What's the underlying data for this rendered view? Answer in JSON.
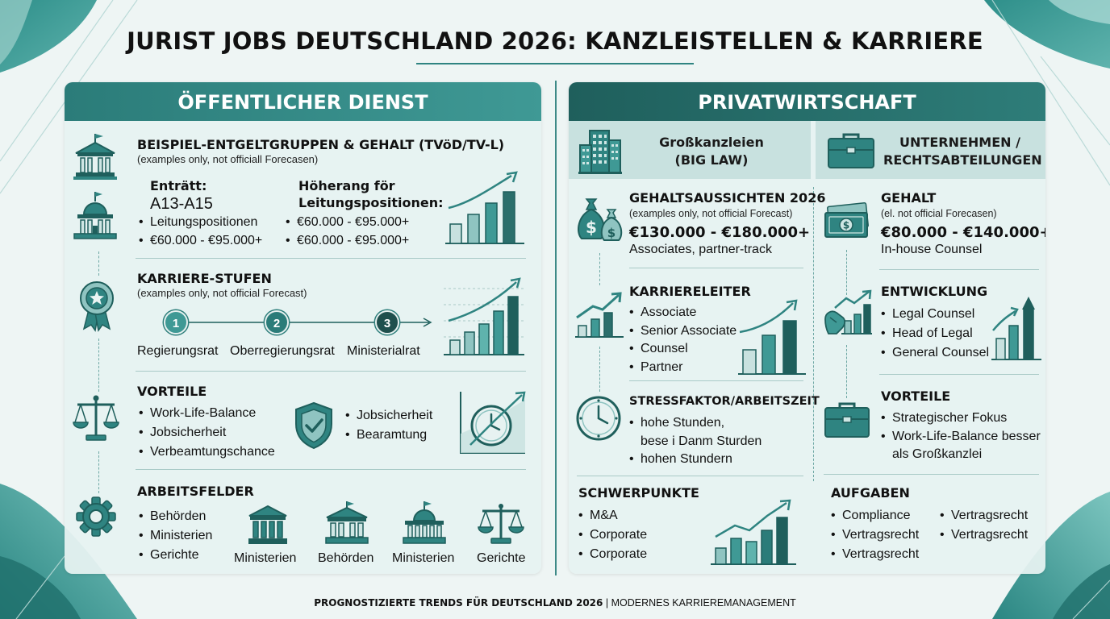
{
  "title": "JURIST JOBS DEUTSCHLAND 2026: KANZLEISTELLEN & KARRIERE",
  "footer": {
    "bold": "PROGNOSTIZIERTE TRENDS FÜR DEUTSCHLAND 2026",
    "separator": " | ",
    "rest": "MODERNES KARRIEREMANAGEMENT"
  },
  "colors": {
    "teal_dark": "#2b7c79",
    "teal_light": "#8fc4c1",
    "panel_bg": "#e7f2f1",
    "subheader_bg": "#c8e1df"
  },
  "left": {
    "header": "ÖFFENTLICHER DIENST",
    "pay": {
      "icon": "government-building-icon",
      "icon2": "domed-building-icon",
      "heading": "BEISPIEL-ENTGELTGRUPPEN & GEHALT (TVöD/TV-L)",
      "note": "(examples only, not officiall Forecasen)",
      "col1": {
        "label": "Enträtt:",
        "grade": "A13-A15",
        "bullets": [
          "Leitungspositionen",
          "€60.000 - €95.000+"
        ]
      },
      "col2": {
        "label_line1": "Höherang för",
        "label_line2": "Leitungspositionen:",
        "bullets": [
          "€60.000 - €95.000+",
          "€60.000 - €95.000+"
        ]
      }
    },
    "career": {
      "icon": "award-rosette-icon",
      "heading": "KARRIERE-STUFEN",
      "note": "(examples only, not official Forecast)",
      "steps": [
        {
          "number": "1",
          "label": "Regierungsrat"
        },
        {
          "number": "2",
          "label": "Oberregierungsrat"
        },
        {
          "number": "3",
          "label": "Ministerialrat"
        }
      ]
    },
    "benefits": {
      "icon": "scales-of-justice-icon",
      "heading": "VORTEILE",
      "bullets": [
        "Work-Life-Balance",
        "Jobsicherheit",
        "Verbeamtungschance"
      ],
      "shield_icon": "shield-check-icon",
      "bullets2": [
        "Jobsicherheit",
        "Bearamtung"
      ],
      "clock_icon": "clock-growth-icon"
    },
    "fields": {
      "icon": "gear-icon",
      "heading": "ARBEITSFELDER",
      "bullets": [
        "Behörden",
        "Ministerien",
        "Gerichte"
      ],
      "buildings": [
        {
          "icon": "ministry-building-icon",
          "label": "Ministerien"
        },
        {
          "icon": "authority-building-icon",
          "label": "Behörden"
        },
        {
          "icon": "domed-ministry-icon",
          "label": "Ministerien"
        },
        {
          "icon": "court-scales-icon",
          "label": "Gerichte"
        }
      ]
    }
  },
  "right": {
    "header": "PRIVATWIRTSCHAFT",
    "bigLaw": {
      "icon": "skyscraper-icon",
      "title_line1": "Großkanzleien",
      "title_line2": "(BIG LAW)",
      "salary": {
        "icon": "money-bags-icon",
        "heading": "GEHALTSAUSSICHTEN 2026",
        "note": "(examples only, not official Forecast)",
        "range": "€130.000 - €180.000+",
        "detail": "Associates, partner-track"
      },
      "ladder": {
        "icon": "rising-chart-icon",
        "heading": "KARRIERELEITER",
        "bullets": [
          "Associate",
          "Senior Associate",
          "Counsel",
          "Partner"
        ]
      },
      "stress": {
        "icon": "clock-icon",
        "heading": "STRESSFAKTOR/ARBEITSZEIT",
        "bullet1_line1": "hohe Stunden,",
        "bullet1_line2": "bese i Danm Sturden",
        "bullet2": "hohen Stundern"
      },
      "focus": {
        "heading": "SCHWERPUNKTE",
        "bullets": [
          "M&A",
          "Corporate",
          "Corporate"
        ]
      }
    },
    "inhouse": {
      "icon": "briefcase-icon",
      "title_line1": "UNTERNEHMEN /",
      "title_line2": "RECHTSABTEILUNGEN",
      "salary": {
        "icon": "banknote-icon",
        "heading": "GEHALT",
        "note": "(el. not official Forecasen)",
        "range": "€80.000 - €140.000+",
        "detail": "In-house Counsel"
      },
      "development": {
        "icon": "growth-hand-icon",
        "heading": "ENTWICKLUNG",
        "bullets": [
          "Legal Counsel",
          "Head of Legal",
          "General Counsel"
        ]
      },
      "benefits": {
        "icon": "briefcase-icon",
        "heading": "VORTEILE",
        "bullet1": "Strategischer Fokus",
        "bullet2_line1": "Work-Life-Balance besser",
        "bullet2_line2": "als Großkanzlei"
      },
      "tasks": {
        "heading": "AUFGABEN",
        "col1": [
          "Compliance",
          "Vertragsrecht",
          "Vertragsrecht"
        ],
        "col2": [
          "Vertragsrecht",
          "Vertragsrecht"
        ]
      }
    }
  }
}
